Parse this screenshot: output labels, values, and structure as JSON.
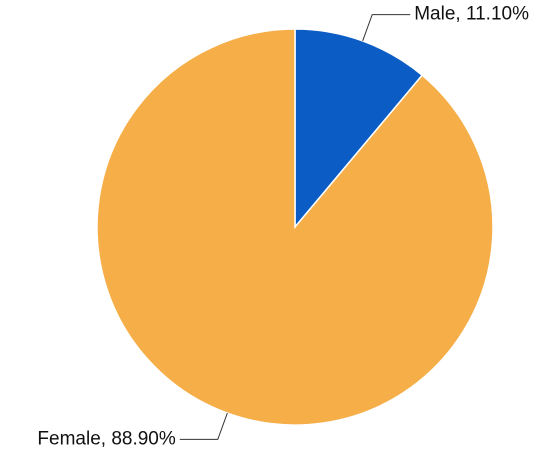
{
  "chart_data": {
    "type": "pie",
    "values": [
      11.1,
      88.9
    ],
    "value_labels": [
      "Male, 11.10%",
      "Female, 88.90%"
    ],
    "colors": [
      "#0b5cc4",
      "#f6ae48"
    ]
  }
}
